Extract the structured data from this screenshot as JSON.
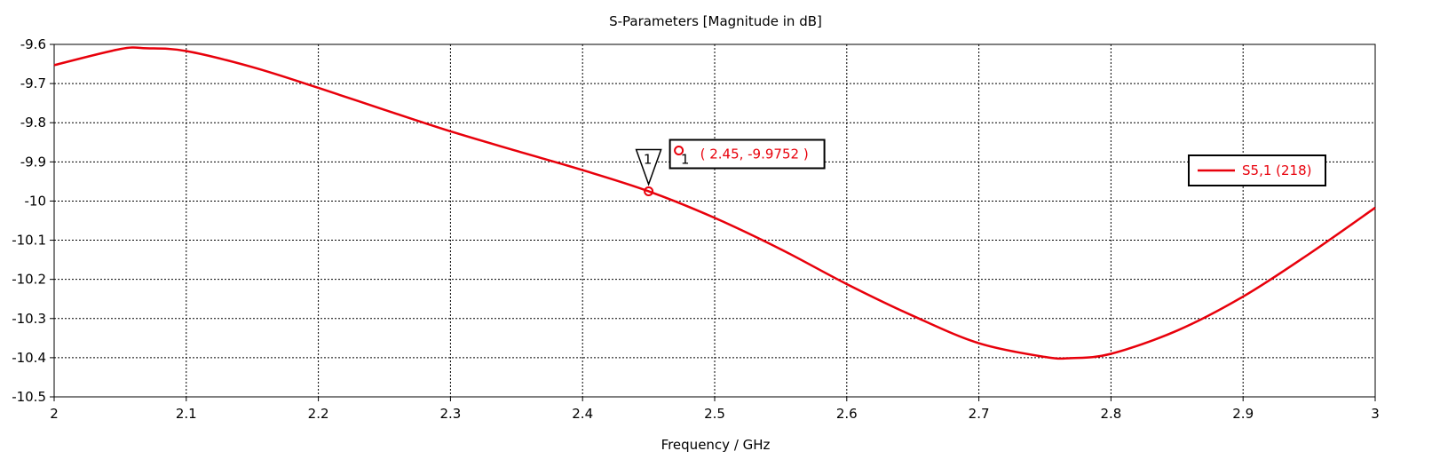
{
  "chart_data": {
    "type": "line",
    "title": "S-Parameters [Magnitude in dB]",
    "xlabel": "Frequency / GHz",
    "ylabel": "",
    "xlim": [
      2,
      3
    ],
    "ylim": [
      -10.5,
      -9.6
    ],
    "x_ticks": [
      "2",
      "2.1",
      "2.2",
      "2.3",
      "2.4",
      "2.5",
      "2.6",
      "2.7",
      "2.8",
      "2.9",
      "3"
    ],
    "y_ticks": [
      "-9.6",
      "-9.7",
      "-9.8",
      "-9.9",
      "-10",
      "-10.1",
      "-10.2",
      "-10.3",
      "-10.4",
      "-10.5"
    ],
    "grid": true,
    "legend_position": "right",
    "series": [
      {
        "name": "S5,1 (218)",
        "color": "#e8000b",
        "x": [
          2.0,
          2.05,
          2.07,
          2.1,
          2.15,
          2.2,
          2.25,
          2.3,
          2.35,
          2.4,
          2.45,
          2.5,
          2.55,
          2.6,
          2.65,
          2.7,
          2.75,
          2.77,
          2.8,
          2.85,
          2.9,
          2.95,
          3.0
        ],
        "y": [
          -9.653,
          -9.612,
          -9.61,
          -9.617,
          -9.658,
          -9.711,
          -9.767,
          -9.822,
          -9.872,
          -9.921,
          -9.975,
          -10.043,
          -10.123,
          -10.212,
          -10.293,
          -10.363,
          -10.398,
          -10.401,
          -10.39,
          -10.331,
          -10.244,
          -10.135,
          -10.017
        ]
      }
    ],
    "marker": {
      "id": "1",
      "x": 2.45,
      "y": -9.9752,
      "label": "( 2.45, -9.9752 )"
    }
  }
}
